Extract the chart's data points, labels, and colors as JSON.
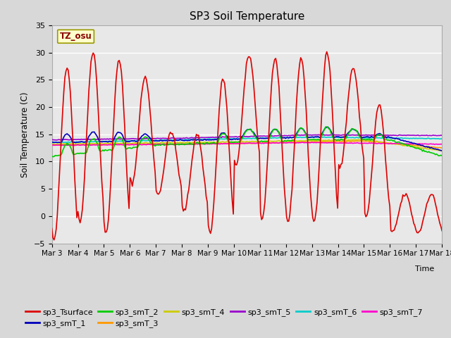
{
  "title": "SP3 Soil Temperature",
  "ylabel": "Soil Temperature (C)",
  "xlabel": "Time",
  "tz_label": "TZ_osu",
  "ylim": [
    -5,
    35
  ],
  "background_color": "#d8d8d8",
  "plot_bg_color": "#e8e8e8",
  "series_colors": {
    "sp3_Tsurface": "#dd0000",
    "sp3_smT_1": "#0000bb",
    "sp3_smT_2": "#00cc00",
    "sp3_smT_3": "#ff9900",
    "sp3_smT_4": "#cccc00",
    "sp3_smT_5": "#9900cc",
    "sp3_smT_6": "#00cccc",
    "sp3_smT_7": "#ff00cc"
  },
  "tick_dates": [
    "Mar 3",
    "Mar 4",
    "Mar 5",
    "Mar 6",
    "Mar 7",
    "Mar 8",
    "Mar 9",
    "Mar 10",
    "Mar 11",
    "Mar 12",
    "Mar 13",
    "Mar 14",
    "Mar 15",
    "Mar 16",
    "Mar 17",
    "Mar 18"
  ],
  "yticks": [
    -5,
    0,
    5,
    10,
    15,
    20,
    25,
    30,
    35
  ]
}
